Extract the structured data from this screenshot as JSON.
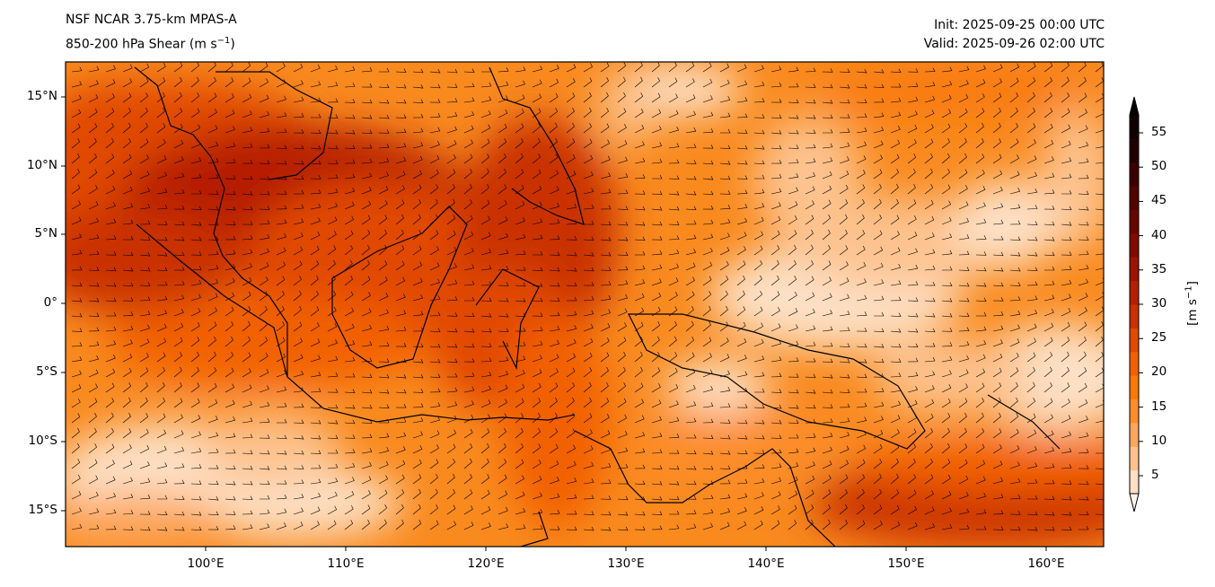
{
  "title_left": {
    "line1": "NSF NCAR 3.75-km MPAS-A",
    "line2": "850-200 hPa Shear (m s",
    "line2_sup": "−1",
    "line2_end": ")"
  },
  "title_right": {
    "init": "Init: 2025-09-25 00:00 UTC",
    "valid": "Valid: 2025-09-26 02:00 UTC"
  },
  "lon_ticks": [
    "100°E",
    "110°E",
    "120°E",
    "130°E",
    "140°E",
    "150°E",
    "160°E"
  ],
  "lat_ticks": [
    "15°N",
    "10°N",
    "5°N",
    "0°",
    "5°S",
    "10°S",
    "15°S"
  ],
  "colorbar": {
    "label": "[m s",
    "label_sup": "−1",
    "label_end": "]",
    "ticks": [
      "5",
      "10",
      "15",
      "20",
      "25",
      "30",
      "35",
      "40",
      "45",
      "50",
      "55"
    ],
    "colors": [
      "#fff5ee",
      "#fde0c5",
      "#fdc28e",
      "#fda65c",
      "#fd8d2a",
      "#f97a0a",
      "#f26005",
      "#e14a04",
      "#c93103",
      "#b51f02",
      "#9c1401",
      "#820b01",
      "#690600",
      "#510300",
      "#3a0100",
      "#220000",
      "#100000",
      "#000000"
    ]
  }
}
